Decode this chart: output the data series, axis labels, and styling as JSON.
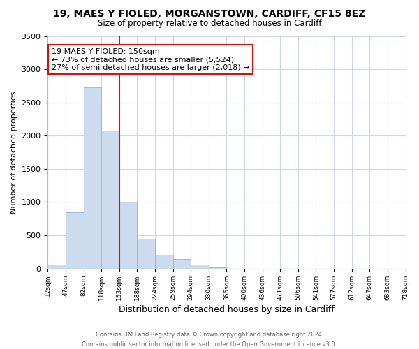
{
  "title": "19, MAES Y FIOLED, MORGANSTOWN, CARDIFF, CF15 8EZ",
  "subtitle": "Size of property relative to detached houses in Cardiff",
  "xlabel": "Distribution of detached houses by size in Cardiff",
  "ylabel": "Number of detached properties",
  "bin_labels": [
    "12sqm",
    "47sqm",
    "82sqm",
    "118sqm",
    "153sqm",
    "188sqm",
    "224sqm",
    "259sqm",
    "294sqm",
    "330sqm",
    "365sqm",
    "400sqm",
    "436sqm",
    "471sqm",
    "506sqm",
    "541sqm",
    "577sqm",
    "612sqm",
    "647sqm",
    "683sqm",
    "718sqm"
  ],
  "bar_heights": [
    60,
    850,
    2730,
    2080,
    1010,
    450,
    210,
    145,
    60,
    15,
    0,
    0,
    0,
    0,
    0,
    0,
    0,
    0,
    0,
    0
  ],
  "bar_color": "#ccdcee",
  "bar_edge_color": "#99bbdd",
  "vline_x_index": 4,
  "vline_color": "red",
  "annotation_text": "19 MAES Y FIOLED: 150sqm\n← 73% of detached houses are smaller (5,524)\n27% of semi-detached houses are larger (2,018) →",
  "annotation_box_color": "white",
  "annotation_box_edgecolor": "red",
  "ylim": [
    0,
    3500
  ],
  "yticks": [
    0,
    500,
    1000,
    1500,
    2000,
    2500,
    3000,
    3500
  ],
  "footer_line1": "Contains HM Land Registry data © Crown copyright and database right 2024.",
  "footer_line2": "Contains public sector information licensed under the Open Government Licence v3.0.",
  "background_color": "white",
  "grid_color": "#ccd8e8"
}
